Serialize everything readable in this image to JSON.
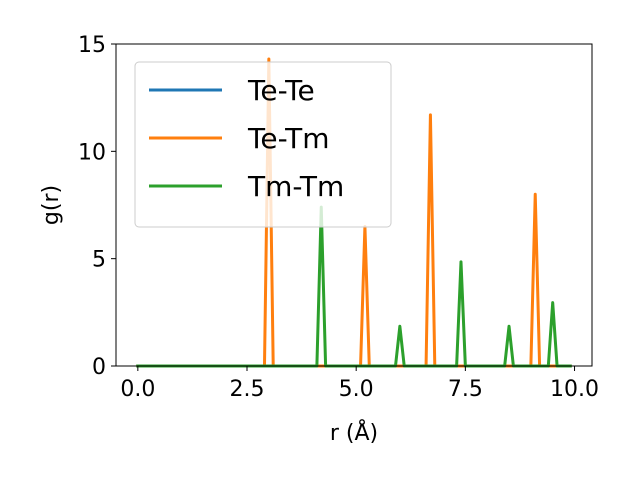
{
  "chart_data": {
    "type": "line",
    "title": "",
    "xlabel": "r (Å)",
    "ylabel": "g(r)",
    "xlim": [
      -0.5,
      10.4
    ],
    "ylim": [
      0,
      15
    ],
    "xticks": [
      0.0,
      2.5,
      5.0,
      7.5,
      10.0
    ],
    "xtick_labels": [
      "0.0",
      "2.5",
      "5.0",
      "7.5",
      "10.0"
    ],
    "yticks": [
      0,
      5,
      10,
      15
    ],
    "ytick_labels": [
      "0",
      "5",
      "10",
      "15"
    ],
    "grid": false,
    "legend_position": "upper-left",
    "series": [
      {
        "name": "Te-Te",
        "color": "#1f77b4",
        "x": [
          0.0,
          9.9
        ],
        "y": [
          0.0,
          0.0
        ]
      },
      {
        "name": "Te-Tm",
        "color": "#ff7f0e",
        "x": [
          0.0,
          2.9,
          3.0,
          3.1,
          5.1,
          5.2,
          5.3,
          6.6,
          6.7,
          6.8,
          9.0,
          9.1,
          9.2,
          9.9
        ],
        "y": [
          0.0,
          0.0,
          14.3,
          0.0,
          0.0,
          6.5,
          0.0,
          0.0,
          11.7,
          0.0,
          0.0,
          8.0,
          0.0,
          0.0
        ]
      },
      {
        "name": "Tm-Tm",
        "color": "#2ca02c",
        "x": [
          0.0,
          4.1,
          4.2,
          4.3,
          5.9,
          6.0,
          6.1,
          7.3,
          7.4,
          7.5,
          8.4,
          8.5,
          8.6,
          9.4,
          9.5,
          9.6,
          9.9
        ],
        "y": [
          0.0,
          0.0,
          7.4,
          0.0,
          0.0,
          1.85,
          0.0,
          0.0,
          4.85,
          0.0,
          0.0,
          1.85,
          0.0,
          0.0,
          2.95,
          0.0,
          0.0
        ]
      }
    ]
  }
}
